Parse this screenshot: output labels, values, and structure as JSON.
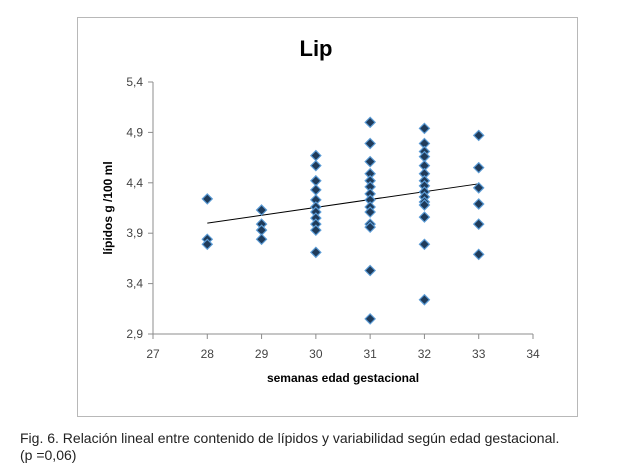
{
  "chart_data": {
    "type": "scatter",
    "title": "Lip",
    "xlabel": "semanas edad gestacional",
    "ylabel": "lípidos g /100 ml",
    "xlim": [
      27,
      34
    ],
    "ylim": [
      2.9,
      5.4
    ],
    "x_ticks": [
      "27",
      "28",
      "29",
      "30",
      "31",
      "32",
      "33",
      "34"
    ],
    "y_ticks": [
      "2,9",
      "3,4",
      "3,9",
      "4,4",
      "4,9",
      "5,4"
    ],
    "grid": false,
    "legend": "none",
    "marker": "diamond",
    "marker_fill": "#1f3b5a",
    "marker_edge": "#5b9bd5",
    "points": [
      {
        "x": 28,
        "y": 4.24
      },
      {
        "x": 28,
        "y": 3.84
      },
      {
        "x": 28,
        "y": 3.79
      },
      {
        "x": 29,
        "y": 4.13
      },
      {
        "x": 29,
        "y": 3.99
      },
      {
        "x": 29,
        "y": 3.93
      },
      {
        "x": 29,
        "y": 3.84
      },
      {
        "x": 30,
        "y": 4.67
      },
      {
        "x": 30,
        "y": 4.57
      },
      {
        "x": 30,
        "y": 4.42
      },
      {
        "x": 30,
        "y": 4.33
      },
      {
        "x": 30,
        "y": 4.23
      },
      {
        "x": 30,
        "y": 4.16
      },
      {
        "x": 30,
        "y": 4.11
      },
      {
        "x": 30,
        "y": 4.05
      },
      {
        "x": 30,
        "y": 3.99
      },
      {
        "x": 30,
        "y": 3.93
      },
      {
        "x": 30,
        "y": 3.71
      },
      {
        "x": 31,
        "y": 5.0
      },
      {
        "x": 31,
        "y": 4.79
      },
      {
        "x": 31,
        "y": 4.61
      },
      {
        "x": 31,
        "y": 4.49
      },
      {
        "x": 31,
        "y": 4.42
      },
      {
        "x": 31,
        "y": 4.36
      },
      {
        "x": 31,
        "y": 4.29
      },
      {
        "x": 31,
        "y": 4.23
      },
      {
        "x": 31,
        "y": 4.16
      },
      {
        "x": 31,
        "y": 4.11
      },
      {
        "x": 31,
        "y": 3.99
      },
      {
        "x": 31,
        "y": 3.96
      },
      {
        "x": 31,
        "y": 3.53
      },
      {
        "x": 31,
        "y": 3.05
      },
      {
        "x": 32,
        "y": 4.94
      },
      {
        "x": 32,
        "y": 4.79
      },
      {
        "x": 32,
        "y": 4.71
      },
      {
        "x": 32,
        "y": 4.66
      },
      {
        "x": 32,
        "y": 4.57
      },
      {
        "x": 32,
        "y": 4.49
      },
      {
        "x": 32,
        "y": 4.42
      },
      {
        "x": 32,
        "y": 4.37
      },
      {
        "x": 32,
        "y": 4.31
      },
      {
        "x": 32,
        "y": 4.26
      },
      {
        "x": 32,
        "y": 4.21
      },
      {
        "x": 32,
        "y": 4.18
      },
      {
        "x": 32,
        "y": 4.06
      },
      {
        "x": 32,
        "y": 3.79
      },
      {
        "x": 32,
        "y": 3.24
      },
      {
        "x": 33,
        "y": 4.87
      },
      {
        "x": 33,
        "y": 4.55
      },
      {
        "x": 33,
        "y": 4.35
      },
      {
        "x": 33,
        "y": 4.19
      },
      {
        "x": 33,
        "y": 3.99
      },
      {
        "x": 33,
        "y": 3.69
      }
    ],
    "trendline": {
      "x": [
        28,
        33
      ],
      "y": [
        4.0,
        4.39
      ]
    }
  },
  "caption": {
    "line1": "Fig. 6. Relación lineal entre contenido de lípidos  y variabilidad según edad gestacional.",
    "line2": "(p =0,06)"
  }
}
